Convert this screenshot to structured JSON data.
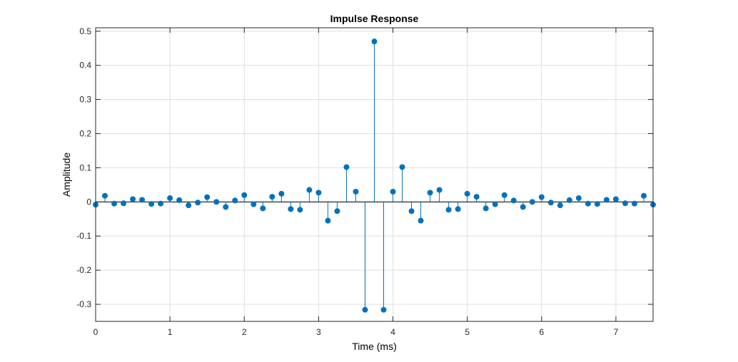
{
  "chart_data": {
    "type": "stem",
    "title": "Impulse Response",
    "xlabel": "Time (ms)",
    "ylabel": "Amplitude",
    "xlim": [
      0,
      7.5
    ],
    "ylim": [
      -0.35,
      0.51
    ],
    "xticks": [
      0,
      1,
      2,
      3,
      4,
      5,
      6,
      7
    ],
    "yticks": [
      -0.3,
      -0.2,
      -0.1,
      0,
      0.1,
      0.2,
      0.3,
      0.4,
      0.5
    ],
    "xtick_labels": [
      "0",
      "1",
      "2",
      "3",
      "4",
      "5",
      "6",
      "7"
    ],
    "ytick_labels": [
      "-0.3",
      "-0.2",
      "-0.1",
      "0",
      "0.1",
      "0.2",
      "0.3",
      "0.4",
      "0.5"
    ],
    "grid": true,
    "sample_interval": 0.125,
    "x": [
      0,
      0.125,
      0.25,
      0.375,
      0.5,
      0.625,
      0.75,
      0.875,
      1.0,
      1.125,
      1.25,
      1.375,
      1.5,
      1.625,
      1.75,
      1.875,
      2.0,
      2.125,
      2.25,
      2.375,
      2.5,
      2.625,
      2.75,
      2.875,
      3.0,
      3.125,
      3.25,
      3.375,
      3.5,
      3.625,
      3.75,
      3.875,
      4.0,
      4.125,
      4.25,
      4.375,
      4.5,
      4.625,
      4.75,
      4.875,
      5.0,
      5.125,
      5.25,
      5.375,
      5.5,
      5.625,
      5.75,
      5.875,
      6.0,
      6.125,
      6.25,
      6.375,
      6.5,
      6.625,
      6.75,
      6.875,
      7.0,
      7.125,
      7.25,
      7.375,
      7.5
    ],
    "values": [
      -0.008,
      0.018,
      -0.005,
      -0.004,
      0.008,
      0.006,
      -0.006,
      -0.005,
      0.011,
      0.005,
      -0.01,
      -0.002,
      0.014,
      0.0,
      -0.015,
      0.004,
      0.02,
      -0.007,
      -0.019,
      0.015,
      0.024,
      -0.021,
      -0.023,
      0.035,
      0.027,
      -0.055,
      -0.027,
      0.102,
      0.03,
      -0.316,
      0.47,
      -0.316,
      0.03,
      0.102,
      -0.027,
      -0.055,
      0.027,
      0.035,
      -0.023,
      -0.021,
      0.024,
      0.015,
      -0.019,
      -0.007,
      0.02,
      0.004,
      -0.015,
      0.0,
      0.014,
      -0.002,
      -0.01,
      0.005,
      0.011,
      -0.005,
      -0.006,
      0.006,
      0.008,
      -0.004,
      -0.005,
      0.018,
      -0.008
    ],
    "colors": {
      "series": "#0072BD",
      "grid": "#dfdfdf",
      "axes": "#262626"
    }
  }
}
